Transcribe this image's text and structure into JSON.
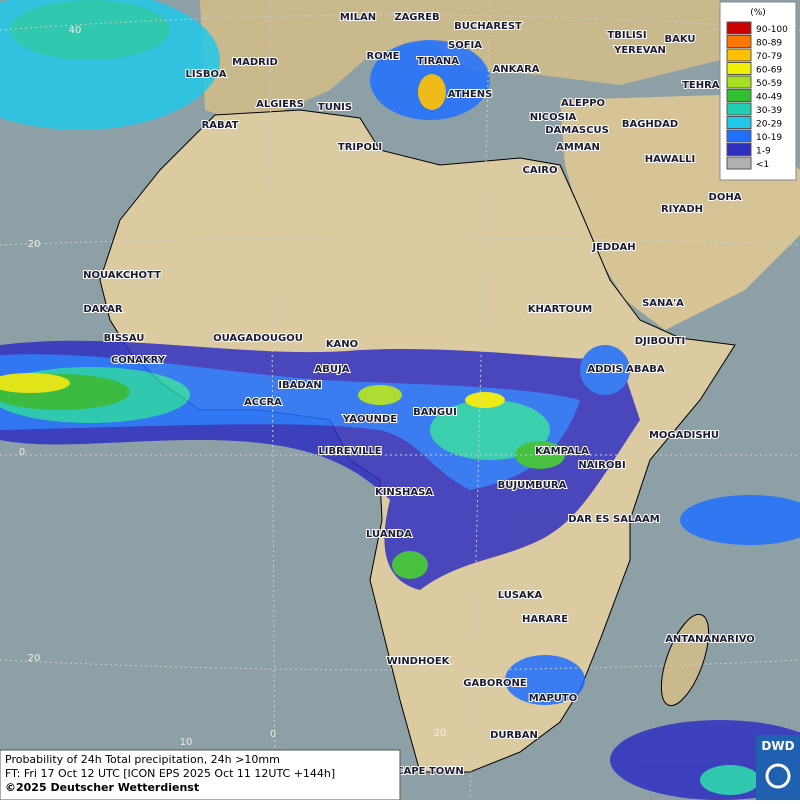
{
  "map": {
    "grid_labels": [
      "40",
      "20",
      "0",
      "20",
      "10",
      "0",
      "20"
    ],
    "cities": [
      "MILAN",
      "ZAGREB",
      "BUCHAREST",
      "TBILISI",
      "BAKU",
      "SOFIA",
      "YEREVAN",
      "LISBOA",
      "MADRID",
      "ROME",
      "TIRANA",
      "ANKARA",
      "TEHRAN",
      "ALGIERS",
      "TUNIS",
      "ATHENS",
      "RABAT",
      "ALEPPO",
      "NICOSIA",
      "BAGHDAD",
      "DAMASCUS",
      "AMMAN",
      "TRIPOLI",
      "HAWALLI",
      "CAIRO",
      "DOHA",
      "RIYADH",
      "JEDDAH",
      "NOUAKCHOTT",
      "DAKAR",
      "KHARTOUM",
      "SANA'A",
      "BISSAU",
      "OUAGADOUGOU",
      "KANO",
      "DJIBOUTI",
      "CONAKRY",
      "ABUJA",
      "ADDIS ABABA",
      "IBADAN",
      "ACCRA",
      "YAOUNDE",
      "BANGUI",
      "MOGADISHU",
      "LIBREVILLE",
      "KAMPALA",
      "NAIROBI",
      "KINSHASA",
      "BUJUMBURA",
      "DAR ES SALAAM",
      "LUANDA",
      "LUSAKA",
      "HARARE",
      "ANTANANARIVO",
      "WINDHOEK",
      "GABORONE",
      "MAPUTO",
      "DURBAN",
      "CAPE TOWN"
    ]
  },
  "legend": {
    "title": "(%)",
    "items": [
      {
        "label": "90-100",
        "color": "#cc0000"
      },
      {
        "label": "80-89",
        "color": "#ff7700"
      },
      {
        "label": "70-79",
        "color": "#ffc000"
      },
      {
        "label": "60-69",
        "color": "#f0f000"
      },
      {
        "label": "50-59",
        "color": "#a8e020"
      },
      {
        "label": "40-49",
        "color": "#30c030"
      },
      {
        "label": "30-39",
        "color": "#20d0b0"
      },
      {
        "label": "20-29",
        "color": "#20c8e8"
      },
      {
        "label": "10-19",
        "color": "#2070ff"
      },
      {
        "label": "1-9",
        "color": "#3030c0"
      },
      {
        "label": "<1",
        "color": "#b0b0b0"
      }
    ]
  },
  "caption": {
    "lines": [
      "Probability of 24h Total precipitation, 24h >10mm",
      "FT: Fri 17 Oct 12 UTC [ICON EPS 2025 Oct 11 12UTC +144h]",
      "©2025 Deutscher Wetterdienst"
    ]
  },
  "logo": "DWD"
}
